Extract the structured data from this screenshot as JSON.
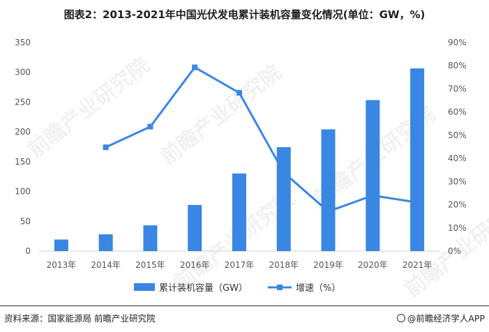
{
  "title": "图表2：2013-2021年中国光伏发电累计装机容量变化情况(单位：GW，%)",
  "footer": {
    "source": "资料来源：国家能源局 前瞻产业研究院",
    "brand": "@前瞻经济学人APP"
  },
  "watermark": "前瞻产业研究院",
  "colors": {
    "bar": "#3a86e3",
    "line": "#3a86e3",
    "axis": "#cfcfcf"
  },
  "chart_data": {
    "type": "bar",
    "categories": [
      "2013年",
      "2014年",
      "2015年",
      "2016年",
      "2017年",
      "2018年",
      "2019年",
      "2020年",
      "2021年"
    ],
    "series": [
      {
        "name": "累计装机容量（GW）",
        "type": "bar",
        "axis": "left",
        "values": [
          19.4,
          28.1,
          43.2,
          77.4,
          130.3,
          174.5,
          204.3,
          253.4,
          306.6
        ]
      },
      {
        "name": "增速（%）",
        "type": "line",
        "axis": "right",
        "values": [
          null,
          44.8,
          53.7,
          79.3,
          68.3,
          33.9,
          17.1,
          24.0,
          21.0
        ]
      }
    ],
    "y_left": {
      "min": 0,
      "max": 350,
      "ticks": [
        0,
        50,
        100,
        150,
        200,
        250,
        300,
        350
      ]
    },
    "y_right": {
      "min": 0,
      "max": 90,
      "ticks": [
        "0%",
        "10%",
        "20%",
        "30%",
        "40%",
        "50%",
        "60%",
        "70%",
        "80%",
        "90%"
      ]
    },
    "legend_position": "bottom",
    "grid": false
  }
}
